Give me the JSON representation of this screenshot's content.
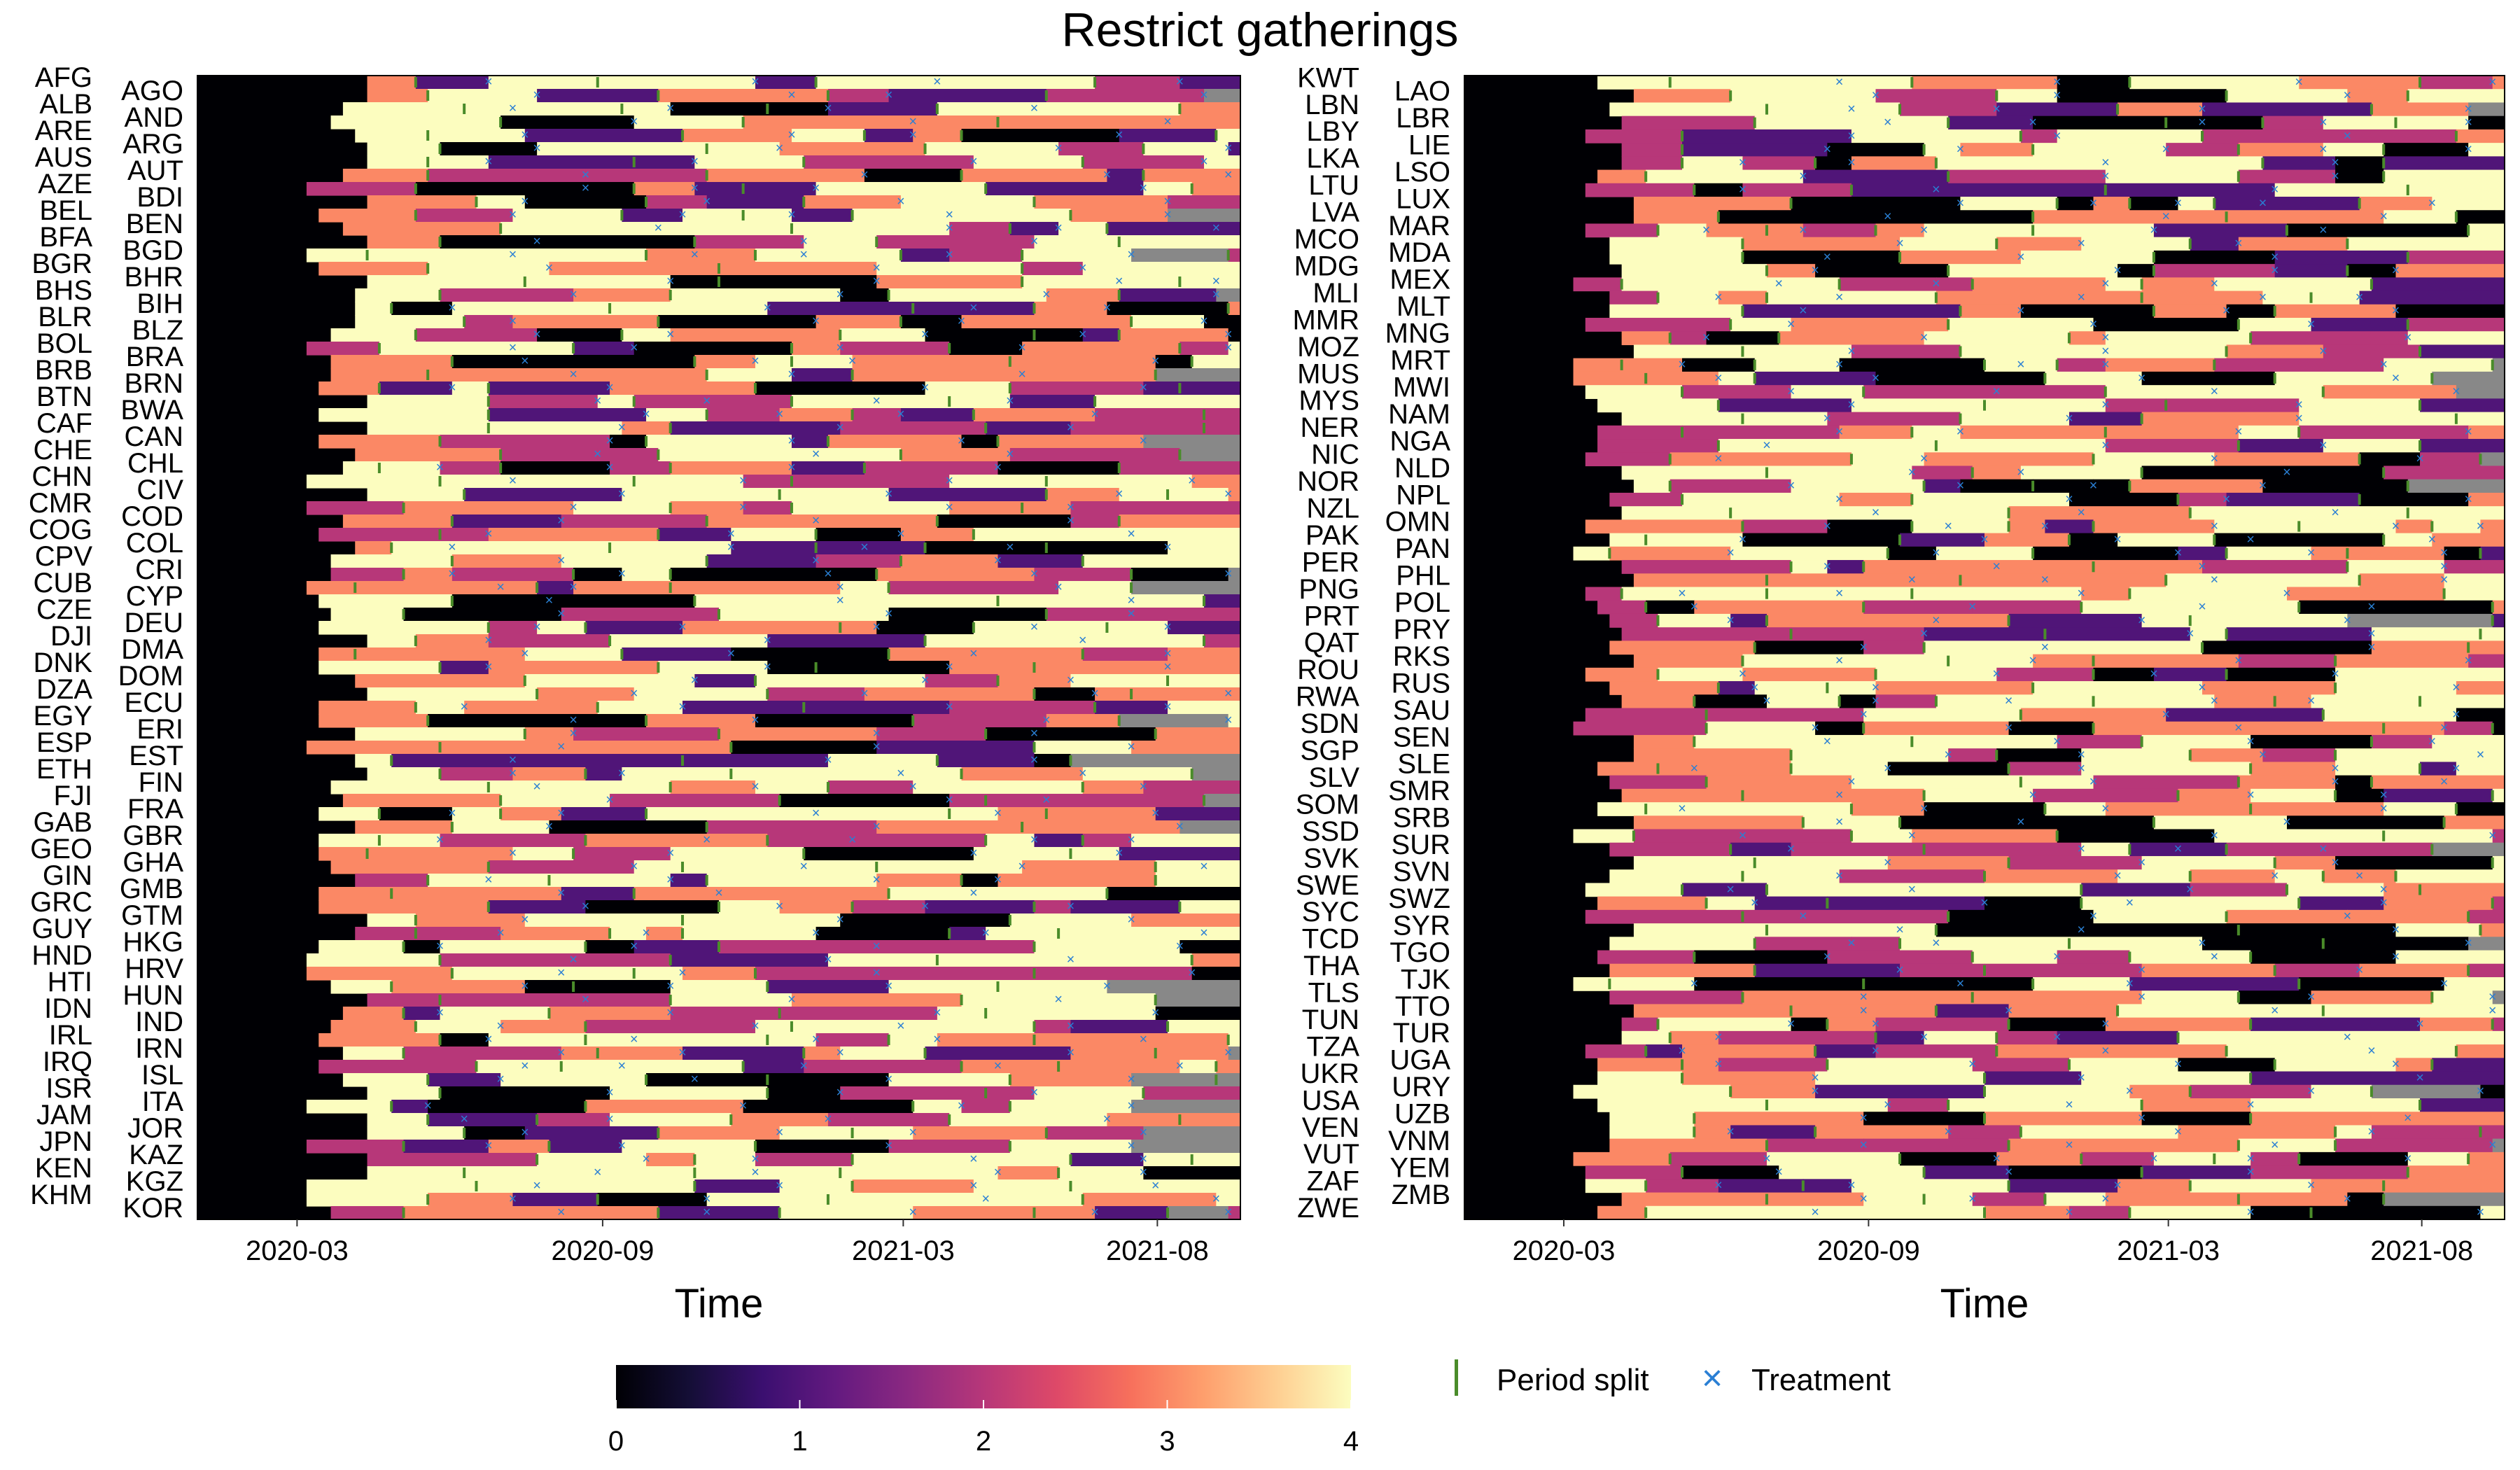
{
  "title": "Restrict gatherings",
  "chart_data": {
    "type": "heatmap",
    "x_tick_labels": [
      "2020-03",
      "2020-09",
      "2021-03",
      "2021-08"
    ],
    "xlabel": "Time",
    "ylabel": "",
    "date_range": [
      "2020-01-01",
      "2021-09-20"
    ],
    "x_ticks_dates": [
      "2020-03-01",
      "2020-09-01",
      "2021-03-01",
      "2021-08-01"
    ],
    "value_range": [
      0,
      4
    ],
    "colorbar_ticks": [
      "0",
      "1",
      "2",
      "3",
      "4"
    ],
    "colorscale": "magma",
    "missing_color": "#888888",
    "legend": {
      "split_label": "Period split",
      "treatment_label": "Treatment",
      "split_color": "#4a8c2a",
      "treatment_color": "#2a7fd4"
    },
    "panels": [
      {
        "countries": [
          "AFG",
          "AGO",
          "ALB",
          "AND",
          "ARE",
          "ARG",
          "AUS",
          "AUT",
          "AZE",
          "BDI",
          "BEL",
          "BEN",
          "BFA",
          "BGD",
          "BGR",
          "BHR",
          "BHS",
          "BIH",
          "BLR",
          "BLZ",
          "BOL",
          "BRA",
          "BRB",
          "BRN",
          "BTN",
          "BWA",
          "CAF",
          "CAN",
          "CHE",
          "CHL",
          "CHN",
          "CIV",
          "CMR",
          "COD",
          "COG",
          "COL",
          "CPV",
          "CRI",
          "CUB",
          "CYP",
          "CZE",
          "DEU",
          "DJI",
          "DMA",
          "DNK",
          "DOM",
          "DZA",
          "ECU",
          "EGY",
          "ERI",
          "ESP",
          "EST",
          "ETH",
          "FIN",
          "FJI",
          "FRA",
          "GAB",
          "GBR",
          "GEO",
          "GHA",
          "GIN",
          "GMB",
          "GRC",
          "GTM",
          "GUY",
          "HKG",
          "HND",
          "HRV",
          "HTI",
          "HUN",
          "IDN",
          "IND",
          "IRL",
          "IRN",
          "IRQ",
          "ISL",
          "ISR",
          "ITA",
          "JAM",
          "JOR",
          "JPN",
          "KAZ",
          "KEN",
          "KGZ",
          "KHM",
          "KOR"
        ]
      },
      {
        "countries": [
          "KWT",
          "LAO",
          "LBN",
          "LBR",
          "LBY",
          "LIE",
          "LKA",
          "LSO",
          "LTU",
          "LUX",
          "LVA",
          "MAR",
          "MCO",
          "MDA",
          "MDG",
          "MEX",
          "MLI",
          "MLT",
          "MMR",
          "MNG",
          "MOZ",
          "MRT",
          "MUS",
          "MWI",
          "MYS",
          "NAM",
          "NER",
          "NGA",
          "NIC",
          "NLD",
          "NOR",
          "NPL",
          "NZL",
          "OMN",
          "PAK",
          "PAN",
          "PER",
          "PHL",
          "PNG",
          "POL",
          "PRT",
          "PRY",
          "QAT",
          "RKS",
          "ROU",
          "RUS",
          "RWA",
          "SAU",
          "SDN",
          "SEN",
          "SGP",
          "SLE",
          "SLV",
          "SMR",
          "SOM",
          "SRB",
          "SSD",
          "SUR",
          "SVK",
          "SVN",
          "SWE",
          "SWZ",
          "SYC",
          "SYR",
          "TCD",
          "TGO",
          "THA",
          "TJK",
          "TLS",
          "TTO",
          "TUN",
          "TUR",
          "TZA",
          "UGA",
          "UKR",
          "URY",
          "USA",
          "UZB",
          "VEN",
          "VNM",
          "VUT",
          "YEM",
          "ZAF",
          "ZMB",
          "ZWE"
        ]
      }
    ]
  }
}
